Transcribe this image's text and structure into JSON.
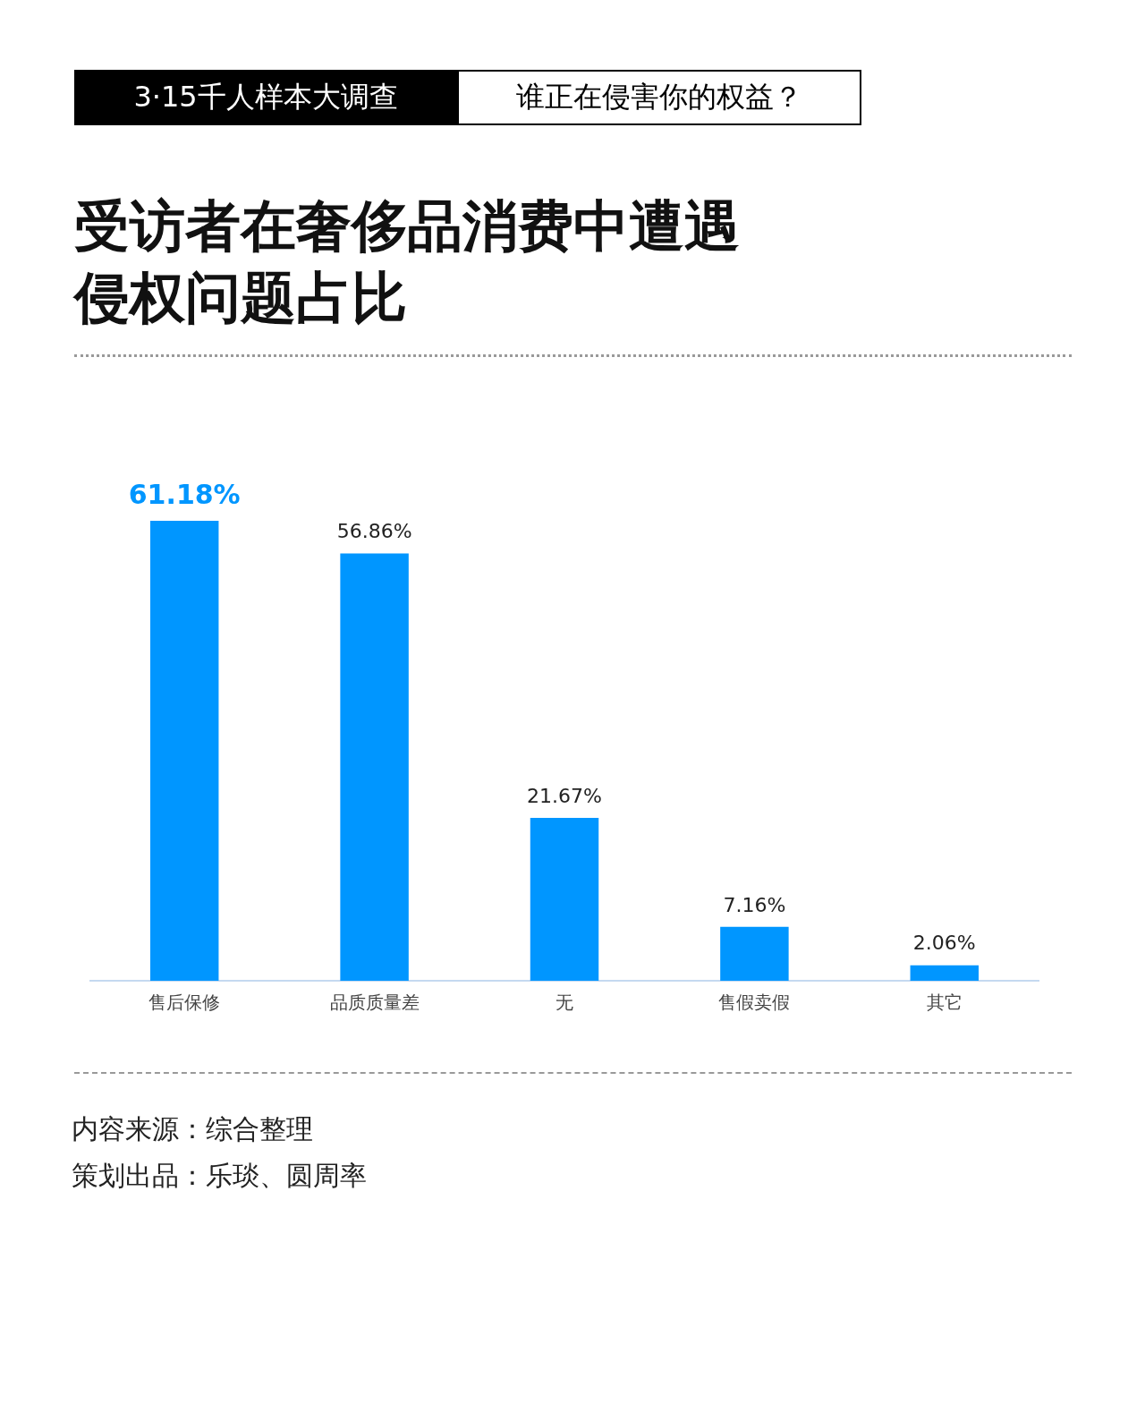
{
  "chart_data": {
    "type": "bar",
    "subtitle": "3·15千人样本大调查",
    "title": "受访者在奢侈品消费中遭遇侵权问题占比",
    "annotations": [
      "谁正在侵害你的权益？",
      "内容来源：综合整理",
      "策划出品：乐琰、圆周率"
    ],
    "categories": [
      "售后保修",
      "品质质量差",
      "无",
      "售假卖假",
      "其它"
    ],
    "values": [
      61.18,
      56.86,
      21.67,
      7.16,
      2.06
    ],
    "value_labels": [
      "61.18%",
      "56.86%",
      "21.67%",
      "7.16%",
      "2.06%"
    ],
    "color": "#0096ff",
    "legend": false
  }
}
